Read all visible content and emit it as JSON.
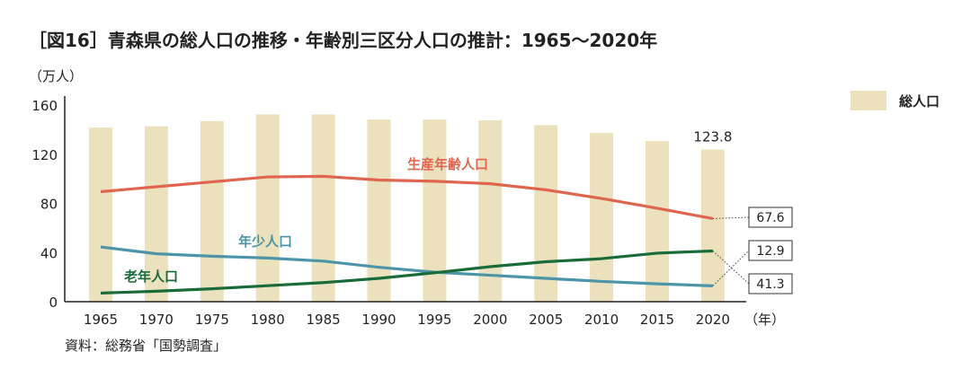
{
  "chart_data": {
    "type": "bar",
    "title": "［図16］青森県の総人口の推移・年齢別三区分人口の推計：1965〜2020年",
    "ylabel": "（万人）",
    "xlabel": "（年）",
    "source": "資料：総務省「国勢調査」",
    "ylim": [
      0,
      160
    ],
    "yticks": [
      0,
      40,
      80,
      120,
      160
    ],
    "categories": [
      "1965",
      "1970",
      "1975",
      "1980",
      "1985",
      "1990",
      "1995",
      "2000",
      "2005",
      "2010",
      "2015",
      "2020"
    ],
    "legend": {
      "position": "top-right",
      "entries": [
        "総人口"
      ]
    },
    "bars": {
      "name": "総人口",
      "color": "#ebe2bd",
      "values": [
        141.7,
        142.7,
        146.9,
        152.4,
        152.4,
        148.3,
        148.2,
        147.6,
        143.7,
        137.3,
        130.8,
        123.8
      ],
      "end_label": "123.8"
    },
    "series": [
      {
        "name": "生産年齢人口",
        "color": "#e0654f",
        "values": [
          89.5,
          93.5,
          97.5,
          101.5,
          102,
          99,
          98,
          96,
          91,
          84,
          76,
          67.6
        ],
        "end_label": "67.6"
      },
      {
        "name": "年少人口",
        "color": "#4c94a8",
        "values": [
          44.5,
          39,
          37,
          35.5,
          33,
          28,
          24,
          21.5,
          19,
          16.5,
          14.5,
          12.9
        ],
        "end_label": "12.9"
      },
      {
        "name": "老年人口",
        "color": "#1a6b3a",
        "values": [
          7,
          8.5,
          10.5,
          13,
          15.5,
          19,
          23.5,
          28.5,
          32.5,
          35,
          39.5,
          41.3
        ],
        "end_label": "41.3"
      }
    ],
    "grid": false
  }
}
